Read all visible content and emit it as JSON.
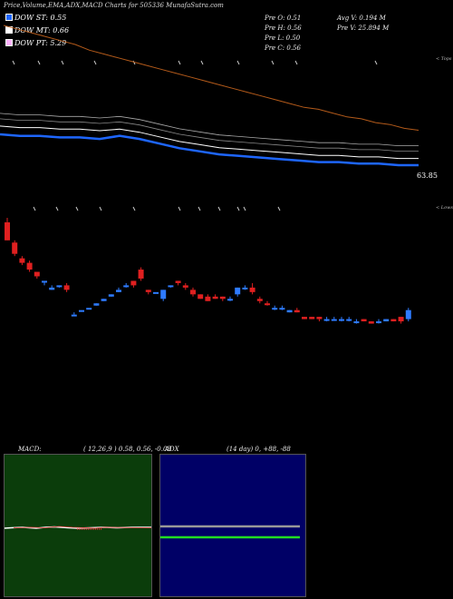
{
  "header": {
    "title": "Price,Volume,EMA,ADX,MACD Charts for 505336  MunafaSutra.com"
  },
  "legend": [
    {
      "label": "DOW ST: 0.55",
      "color": "#1e66ff"
    },
    {
      "label": "DOW MT: 0.66",
      "color": "#ffffff"
    },
    {
      "label": "DOW PT: 5.29",
      "color": "#ffb3ff"
    }
  ],
  "prev": {
    "open": "Pre   O: 0.51",
    "high": "Pre   H: 0.56",
    "low": "Pre   L: 0.50",
    "close": "Pre   C: 0.56"
  },
  "volume": {
    "avg": "Avg V: 0.194   M",
    "pre": "Pre   V: 25.894   M"
  },
  "price_label": "63.85",
  "tags": {
    "top": "< Tops",
    "lows": "< Lows"
  },
  "macd": {
    "title": "MACD:",
    "params": "( 12,26,9 ) 0.58, 0.56, -0.03"
  },
  "adx": {
    "title": "ADX",
    "params": "(14  day) 0, +88, -88"
  },
  "chart_data": {
    "type": "candlestick",
    "title": "Price,Volume,EMA,ADX,MACD Charts for 505336",
    "candles": [
      {
        "o": 0.8,
        "c": 0.88,
        "h": 0.9,
        "l": 0.8,
        "up": false
      },
      {
        "o": 0.79,
        "c": 0.74,
        "h": 0.8,
        "l": 0.73,
        "up": false
      },
      {
        "o": 0.72,
        "c": 0.7,
        "h": 0.73,
        "l": 0.69,
        "up": false
      },
      {
        "o": 0.7,
        "c": 0.67,
        "h": 0.71,
        "l": 0.66,
        "up": false
      },
      {
        "o": 0.66,
        "c": 0.64,
        "h": 0.66,
        "l": 0.63,
        "up": false
      },
      {
        "o": 0.62,
        "c": 0.62,
        "h": 0.62,
        "l": 0.6,
        "up": true
      },
      {
        "o": 0.58,
        "c": 0.59,
        "h": 0.6,
        "l": 0.58,
        "up": true
      },
      {
        "o": 0.6,
        "c": 0.6,
        "h": 0.6,
        "l": 0.59,
        "up": true
      },
      {
        "o": 0.6,
        "c": 0.58,
        "h": 0.61,
        "l": 0.57,
        "up": false
      },
      {
        "o": 0.47,
        "c": 0.47,
        "h": 0.48,
        "l": 0.47,
        "up": true
      },
      {
        "o": 0.49,
        "c": 0.49,
        "h": 0.49,
        "l": 0.49,
        "up": true
      },
      {
        "o": 0.5,
        "c": 0.5,
        "h": 0.5,
        "l": 0.5,
        "up": true
      },
      {
        "o": 0.51,
        "c": 0.52,
        "h": 0.52,
        "l": 0.51,
        "up": true
      },
      {
        "o": 0.54,
        "c": 0.53,
        "h": 0.54,
        "l": 0.53,
        "up": true
      },
      {
        "o": 0.56,
        "c": 0.55,
        "h": 0.56,
        "l": 0.55,
        "up": true
      },
      {
        "o": 0.58,
        "c": 0.57,
        "h": 0.59,
        "l": 0.57,
        "up": true
      },
      {
        "o": 0.6,
        "c": 0.6,
        "h": 0.61,
        "l": 0.59,
        "up": true
      },
      {
        "o": 0.62,
        "c": 0.6,
        "h": 0.62,
        "l": 0.59,
        "up": false
      },
      {
        "o": 0.63,
        "c": 0.67,
        "h": 0.68,
        "l": 0.62,
        "up": false
      },
      {
        "o": 0.57,
        "c": 0.58,
        "h": 0.58,
        "l": 0.56,
        "up": false
      },
      {
        "o": 0.57,
        "c": 0.57,
        "h": 0.57,
        "l": 0.57,
        "up": true
      },
      {
        "o": 0.54,
        "c": 0.58,
        "h": 0.58,
        "l": 0.53,
        "up": true
      },
      {
        "o": 0.6,
        "c": 0.6,
        "h": 0.6,
        "l": 0.59,
        "up": true
      },
      {
        "o": 0.61,
        "c": 0.62,
        "h": 0.62,
        "l": 0.6,
        "up": false
      },
      {
        "o": 0.6,
        "c": 0.59,
        "h": 0.61,
        "l": 0.58,
        "up": false
      },
      {
        "o": 0.58,
        "c": 0.56,
        "h": 0.59,
        "l": 0.55,
        "up": false
      },
      {
        "o": 0.56,
        "c": 0.54,
        "h": 0.56,
        "l": 0.54,
        "up": false
      },
      {
        "o": 0.55,
        "c": 0.53,
        "h": 0.56,
        "l": 0.53,
        "up": false
      },
      {
        "o": 0.55,
        "c": 0.54,
        "h": 0.56,
        "l": 0.54,
        "up": false
      },
      {
        "o": 0.55,
        "c": 0.54,
        "h": 0.55,
        "l": 0.53,
        "up": false
      },
      {
        "o": 0.54,
        "c": 0.54,
        "h": 0.55,
        "l": 0.53,
        "up": true
      },
      {
        "o": 0.56,
        "c": 0.59,
        "h": 0.59,
        "l": 0.55,
        "up": true
      },
      {
        "o": 0.59,
        "c": 0.59,
        "h": 0.6,
        "l": 0.58,
        "up": true
      },
      {
        "o": 0.59,
        "c": 0.57,
        "h": 0.61,
        "l": 0.56,
        "up": false
      },
      {
        "o": 0.54,
        "c": 0.53,
        "h": 0.55,
        "l": 0.52,
        "up": false
      },
      {
        "o": 0.52,
        "c": 0.52,
        "h": 0.53,
        "l": 0.51,
        "up": false
      },
      {
        "o": 0.5,
        "c": 0.5,
        "h": 0.51,
        "l": 0.49,
        "up": true
      },
      {
        "o": 0.5,
        "c": 0.5,
        "h": 0.51,
        "l": 0.49,
        "up": true
      },
      {
        "o": 0.48,
        "c": 0.49,
        "h": 0.49,
        "l": 0.48,
        "up": true
      },
      {
        "o": 0.49,
        "c": 0.48,
        "h": 0.5,
        "l": 0.48,
        "up": false
      },
      {
        "o": 0.46,
        "c": 0.45,
        "h": 0.46,
        "l": 0.45,
        "up": false
      },
      {
        "o": 0.46,
        "c": 0.45,
        "h": 0.46,
        "l": 0.45,
        "up": false
      },
      {
        "o": 0.46,
        "c": 0.45,
        "h": 0.46,
        "l": 0.44,
        "up": false
      },
      {
        "o": 0.45,
        "c": 0.45,
        "h": 0.46,
        "l": 0.44,
        "up": true
      },
      {
        "o": 0.45,
        "c": 0.45,
        "h": 0.46,
        "l": 0.45,
        "up": true
      },
      {
        "o": 0.45,
        "c": 0.45,
        "h": 0.46,
        "l": 0.44,
        "up": true
      },
      {
        "o": 0.45,
        "c": 0.45,
        "h": 0.46,
        "l": 0.44,
        "up": true
      },
      {
        "o": 0.44,
        "c": 0.44,
        "h": 0.45,
        "l": 0.43,
        "up": true
      },
      {
        "o": 0.45,
        "c": 0.44,
        "h": 0.45,
        "l": 0.44,
        "up": false
      },
      {
        "o": 0.44,
        "c": 0.43,
        "h": 0.44,
        "l": 0.43,
        "up": false
      },
      {
        "o": 0.44,
        "c": 0.44,
        "h": 0.45,
        "l": 0.43,
        "up": true
      },
      {
        "o": 0.44,
        "c": 0.45,
        "h": 0.45,
        "l": 0.44,
        "up": true
      },
      {
        "o": 0.45,
        "c": 0.44,
        "h": 0.45,
        "l": 0.44,
        "up": false
      },
      {
        "o": 0.44,
        "c": 0.46,
        "h": 0.46,
        "l": 0.43,
        "up": false
      },
      {
        "o": 0.45,
        "c": 0.49,
        "h": 0.5,
        "l": 0.44,
        "up": true
      }
    ],
    "ema_long": [
      1.4,
      1.38,
      1.36,
      1.34,
      1.32,
      1.3,
      1.27,
      1.25,
      1.23,
      1.21,
      1.19,
      1.17,
      1.15,
      1.13,
      1.11,
      1.09,
      1.07,
      1.05,
      1.03,
      1.01,
      0.99,
      0.97,
      0.96,
      0.94,
      0.92,
      0.91,
      0.89,
      0.88,
      0.86,
      0.85
    ],
    "dow_st": [
      0.53,
      0.52,
      0.52,
      0.51,
      0.51,
      0.5,
      0.52,
      0.5,
      0.47,
      0.44,
      0.42,
      0.4,
      0.39,
      0.38,
      0.37,
      0.36,
      0.35,
      0.35,
      0.34,
      0.34,
      0.33,
      0.33
    ],
    "dow_mt": [
      0.56,
      0.55,
      0.55,
      0.54,
      0.54,
      0.53,
      0.54,
      0.52,
      0.49,
      0.46,
      0.44,
      0.42,
      0.41,
      0.4,
      0.39,
      0.38,
      0.37,
      0.37,
      0.36,
      0.36,
      0.35,
      0.35
    ]
  }
}
